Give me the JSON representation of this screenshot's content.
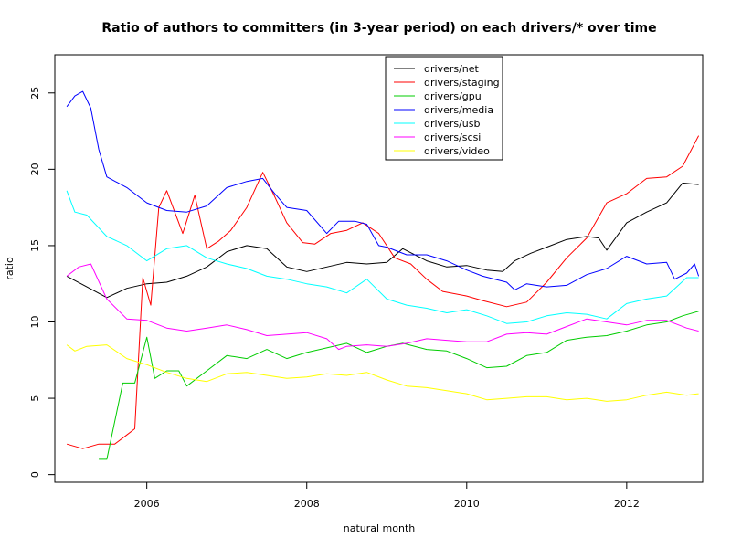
{
  "chart_data": {
    "type": "line",
    "title": "Ratio of authors to committers (in 3-year period) on each drivers/* over time",
    "xlabel": "natural month",
    "ylabel": "ratio",
    "xlim": [
      2004.85,
      2012.95
    ],
    "ylim": [
      -0.5,
      27.5
    ],
    "xticks": [
      2006,
      2008,
      2010,
      2012
    ],
    "yticks": [
      0,
      5,
      10,
      15,
      20,
      25
    ],
    "x_tick_labels": [
      "2006",
      "2008",
      "2010",
      "2012"
    ],
    "y_tick_labels": [
      "0",
      "5",
      "10",
      "15",
      "20",
      "25"
    ],
    "legend_position": "top-center",
    "grid": false,
    "series": [
      {
        "name": "drivers/net",
        "color": "#000000",
        "points": [
          [
            2005.0,
            13.0
          ],
          [
            2005.25,
            12.3
          ],
          [
            2005.5,
            11.6
          ],
          [
            2005.75,
            12.2
          ],
          [
            2006.0,
            12.5
          ],
          [
            2006.25,
            12.6
          ],
          [
            2006.5,
            13.0
          ],
          [
            2006.75,
            13.6
          ],
          [
            2007.0,
            14.6
          ],
          [
            2007.25,
            15.0
          ],
          [
            2007.5,
            14.8
          ],
          [
            2007.75,
            13.6
          ],
          [
            2008.0,
            13.3
          ],
          [
            2008.25,
            13.6
          ],
          [
            2008.5,
            13.9
          ],
          [
            2008.75,
            13.8
          ],
          [
            2009.0,
            13.9
          ],
          [
            2009.2,
            14.8
          ],
          [
            2009.5,
            14.0
          ],
          [
            2009.75,
            13.6
          ],
          [
            2010.0,
            13.7
          ],
          [
            2010.25,
            13.4
          ],
          [
            2010.45,
            13.3
          ],
          [
            2010.6,
            14.0
          ],
          [
            2010.8,
            14.5
          ],
          [
            2011.0,
            14.9
          ],
          [
            2011.25,
            15.4
          ],
          [
            2011.5,
            15.6
          ],
          [
            2011.65,
            15.5
          ],
          [
            2011.75,
            14.7
          ],
          [
            2012.0,
            16.5
          ],
          [
            2012.25,
            17.2
          ],
          [
            2012.5,
            17.8
          ],
          [
            2012.7,
            19.1
          ],
          [
            2012.9,
            19.0
          ]
        ]
      },
      {
        "name": "drivers/staging",
        "color": "#ff0000",
        "points": [
          [
            2005.0,
            2.0
          ],
          [
            2005.2,
            1.7
          ],
          [
            2005.4,
            2.0
          ],
          [
            2005.6,
            2.0
          ],
          [
            2005.75,
            2.6
          ],
          [
            2005.85,
            3.0
          ],
          [
            2005.95,
            12.9
          ],
          [
            2006.05,
            11.1
          ],
          [
            2006.15,
            17.5
          ],
          [
            2006.25,
            18.6
          ],
          [
            2006.45,
            15.8
          ],
          [
            2006.6,
            18.3
          ],
          [
            2006.75,
            14.8
          ],
          [
            2006.9,
            15.3
          ],
          [
            2007.05,
            16.0
          ],
          [
            2007.25,
            17.5
          ],
          [
            2007.45,
            19.8
          ],
          [
            2007.6,
            18.2
          ],
          [
            2007.75,
            16.5
          ],
          [
            2007.95,
            15.2
          ],
          [
            2008.1,
            15.1
          ],
          [
            2008.3,
            15.8
          ],
          [
            2008.5,
            16.0
          ],
          [
            2008.7,
            16.5
          ],
          [
            2008.9,
            15.8
          ],
          [
            2009.1,
            14.2
          ],
          [
            2009.3,
            13.8
          ],
          [
            2009.5,
            12.8
          ],
          [
            2009.7,
            12.0
          ],
          [
            2010.0,
            11.7
          ],
          [
            2010.2,
            11.4
          ],
          [
            2010.5,
            11.0
          ],
          [
            2010.75,
            11.3
          ],
          [
            2011.0,
            12.6
          ],
          [
            2011.25,
            14.2
          ],
          [
            2011.5,
            15.5
          ],
          [
            2011.75,
            17.8
          ],
          [
            2012.0,
            18.4
          ],
          [
            2012.25,
            19.4
          ],
          [
            2012.5,
            19.5
          ],
          [
            2012.7,
            20.2
          ],
          [
            2012.9,
            22.2
          ]
        ]
      },
      {
        "name": "drivers/gpu",
        "color": "#00cc00",
        "points": [
          [
            2005.4,
            1.0
          ],
          [
            2005.5,
            1.0
          ],
          [
            2005.7,
            6.0
          ],
          [
            2005.85,
            6.0
          ],
          [
            2006.0,
            9.0
          ],
          [
            2006.1,
            6.3
          ],
          [
            2006.25,
            6.8
          ],
          [
            2006.4,
            6.8
          ],
          [
            2006.5,
            5.8
          ],
          [
            2006.75,
            6.8
          ],
          [
            2007.0,
            7.8
          ],
          [
            2007.25,
            7.6
          ],
          [
            2007.5,
            8.2
          ],
          [
            2007.75,
            7.6
          ],
          [
            2008.0,
            8.0
          ],
          [
            2008.25,
            8.3
          ],
          [
            2008.5,
            8.6
          ],
          [
            2008.75,
            8.0
          ],
          [
            2009.0,
            8.4
          ],
          [
            2009.2,
            8.6
          ],
          [
            2009.5,
            8.2
          ],
          [
            2009.75,
            8.1
          ],
          [
            2010.0,
            7.6
          ],
          [
            2010.25,
            7.0
          ],
          [
            2010.5,
            7.1
          ],
          [
            2010.75,
            7.8
          ],
          [
            2011.0,
            8.0
          ],
          [
            2011.25,
            8.8
          ],
          [
            2011.5,
            9.0
          ],
          [
            2011.75,
            9.1
          ],
          [
            2012.0,
            9.4
          ],
          [
            2012.25,
            9.8
          ],
          [
            2012.5,
            10.0
          ],
          [
            2012.7,
            10.4
          ],
          [
            2012.9,
            10.7
          ]
        ]
      },
      {
        "name": "drivers/media",
        "color": "#0000ff",
        "points": [
          [
            2005.0,
            24.1
          ],
          [
            2005.1,
            24.8
          ],
          [
            2005.2,
            25.1
          ],
          [
            2005.3,
            24.0
          ],
          [
            2005.4,
            21.3
          ],
          [
            2005.5,
            19.5
          ],
          [
            2005.75,
            18.8
          ],
          [
            2006.0,
            17.8
          ],
          [
            2006.25,
            17.3
          ],
          [
            2006.5,
            17.2
          ],
          [
            2006.75,
            17.6
          ],
          [
            2007.0,
            18.8
          ],
          [
            2007.25,
            19.2
          ],
          [
            2007.45,
            19.4
          ],
          [
            2007.6,
            18.4
          ],
          [
            2007.75,
            17.5
          ],
          [
            2008.0,
            17.3
          ],
          [
            2008.25,
            15.8
          ],
          [
            2008.4,
            16.6
          ],
          [
            2008.6,
            16.6
          ],
          [
            2008.75,
            16.4
          ],
          [
            2008.9,
            15.0
          ],
          [
            2009.0,
            14.9
          ],
          [
            2009.25,
            14.4
          ],
          [
            2009.5,
            14.4
          ],
          [
            2009.75,
            14.0
          ],
          [
            2010.0,
            13.4
          ],
          [
            2010.2,
            13.0
          ],
          [
            2010.5,
            12.6
          ],
          [
            2010.6,
            12.1
          ],
          [
            2010.75,
            12.5
          ],
          [
            2011.0,
            12.3
          ],
          [
            2011.25,
            12.4
          ],
          [
            2011.5,
            13.1
          ],
          [
            2011.75,
            13.5
          ],
          [
            2012.0,
            14.3
          ],
          [
            2012.25,
            13.8
          ],
          [
            2012.5,
            13.9
          ],
          [
            2012.6,
            12.8
          ],
          [
            2012.75,
            13.2
          ],
          [
            2012.85,
            13.8
          ],
          [
            2012.9,
            13.0
          ]
        ]
      },
      {
        "name": "drivers/usb",
        "color": "#00ffff",
        "points": [
          [
            2005.0,
            18.6
          ],
          [
            2005.1,
            17.2
          ],
          [
            2005.25,
            17.0
          ],
          [
            2005.5,
            15.6
          ],
          [
            2005.75,
            15.0
          ],
          [
            2006.0,
            14.0
          ],
          [
            2006.25,
            14.8
          ],
          [
            2006.5,
            15.0
          ],
          [
            2006.75,
            14.2
          ],
          [
            2007.0,
            13.8
          ],
          [
            2007.25,
            13.5
          ],
          [
            2007.5,
            13.0
          ],
          [
            2007.75,
            12.8
          ],
          [
            2008.0,
            12.5
          ],
          [
            2008.25,
            12.3
          ],
          [
            2008.5,
            11.9
          ],
          [
            2008.75,
            12.8
          ],
          [
            2009.0,
            11.5
          ],
          [
            2009.25,
            11.1
          ],
          [
            2009.5,
            10.9
          ],
          [
            2009.75,
            10.6
          ],
          [
            2010.0,
            10.8
          ],
          [
            2010.25,
            10.4
          ],
          [
            2010.5,
            9.9
          ],
          [
            2010.75,
            10.0
          ],
          [
            2011.0,
            10.4
          ],
          [
            2011.25,
            10.6
          ],
          [
            2011.5,
            10.5
          ],
          [
            2011.75,
            10.2
          ],
          [
            2012.0,
            11.2
          ],
          [
            2012.25,
            11.5
          ],
          [
            2012.5,
            11.7
          ],
          [
            2012.75,
            12.9
          ],
          [
            2012.9,
            12.9
          ]
        ]
      },
      {
        "name": "drivers/scsi",
        "color": "#ff00ff",
        "points": [
          [
            2005.0,
            13.0
          ],
          [
            2005.15,
            13.6
          ],
          [
            2005.3,
            13.8
          ],
          [
            2005.5,
            11.5
          ],
          [
            2005.75,
            10.2
          ],
          [
            2006.0,
            10.1
          ],
          [
            2006.25,
            9.6
          ],
          [
            2006.5,
            9.4
          ],
          [
            2006.75,
            9.6
          ],
          [
            2007.0,
            9.8
          ],
          [
            2007.25,
            9.5
          ],
          [
            2007.5,
            9.1
          ],
          [
            2007.75,
            9.2
          ],
          [
            2008.0,
            9.3
          ],
          [
            2008.25,
            8.9
          ],
          [
            2008.4,
            8.2
          ],
          [
            2008.5,
            8.4
          ],
          [
            2008.75,
            8.5
          ],
          [
            2009.0,
            8.4
          ],
          [
            2009.25,
            8.6
          ],
          [
            2009.5,
            8.9
          ],
          [
            2009.75,
            8.8
          ],
          [
            2010.0,
            8.7
          ],
          [
            2010.25,
            8.7
          ],
          [
            2010.5,
            9.2
          ],
          [
            2010.75,
            9.3
          ],
          [
            2011.0,
            9.2
          ],
          [
            2011.25,
            9.7
          ],
          [
            2011.5,
            10.2
          ],
          [
            2011.75,
            10.0
          ],
          [
            2012.0,
            9.8
          ],
          [
            2012.25,
            10.1
          ],
          [
            2012.5,
            10.1
          ],
          [
            2012.75,
            9.6
          ],
          [
            2012.9,
            9.4
          ]
        ]
      },
      {
        "name": "drivers/video",
        "color": "#ffff00",
        "points": [
          [
            2005.0,
            8.5
          ],
          [
            2005.1,
            8.1
          ],
          [
            2005.25,
            8.4
          ],
          [
            2005.5,
            8.5
          ],
          [
            2005.75,
            7.6
          ],
          [
            2006.0,
            7.2
          ],
          [
            2006.25,
            6.7
          ],
          [
            2006.5,
            6.3
          ],
          [
            2006.75,
            6.1
          ],
          [
            2007.0,
            6.6
          ],
          [
            2007.25,
            6.7
          ],
          [
            2007.5,
            6.5
          ],
          [
            2007.75,
            6.3
          ],
          [
            2008.0,
            6.4
          ],
          [
            2008.25,
            6.6
          ],
          [
            2008.5,
            6.5
          ],
          [
            2008.75,
            6.7
          ],
          [
            2009.0,
            6.2
          ],
          [
            2009.25,
            5.8
          ],
          [
            2009.5,
            5.7
          ],
          [
            2009.75,
            5.5
          ],
          [
            2010.0,
            5.3
          ],
          [
            2010.25,
            4.9
          ],
          [
            2010.5,
            5.0
          ],
          [
            2010.75,
            5.1
          ],
          [
            2011.0,
            5.1
          ],
          [
            2011.25,
            4.9
          ],
          [
            2011.5,
            5.0
          ],
          [
            2011.75,
            4.8
          ],
          [
            2012.0,
            4.9
          ],
          [
            2012.25,
            5.2
          ],
          [
            2012.5,
            5.4
          ],
          [
            2012.75,
            5.2
          ],
          [
            2012.9,
            5.3
          ]
        ]
      }
    ]
  }
}
